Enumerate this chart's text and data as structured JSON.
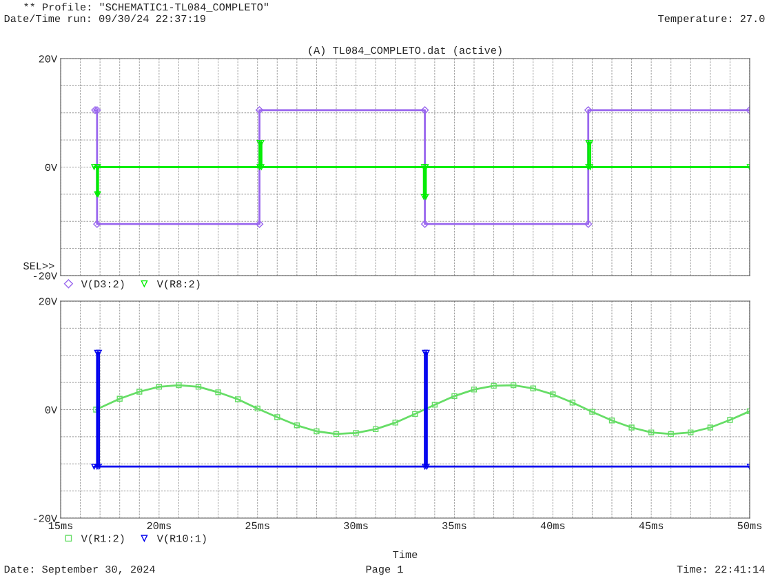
{
  "chart_data": [
    {
      "type": "line",
      "title": "(A) TL084_COMPLETO.dat (active)",
      "annotations": [
        "** Profile: \"SCHEMATIC1-TL084_COMPLETO\"",
        "Date/Time run: 09/30/24 22:37:19",
        "Temperature: 27.0",
        "SEL>>"
      ],
      "xlim": [
        15,
        50.0
      ],
      "xticks": [
        {
          "value": 15,
          "label": null
        },
        {
          "value": 16,
          "label": null
        },
        {
          "value": 17,
          "label": null
        },
        {
          "value": 18,
          "label": null
        },
        {
          "value": 19,
          "label": null
        },
        {
          "value": 20,
          "label": null
        },
        {
          "value": 21,
          "label": null
        },
        {
          "value": 22,
          "label": null
        },
        {
          "value": 23,
          "label": null
        },
        {
          "value": 24,
          "label": null
        },
        {
          "value": 25,
          "label": null
        },
        {
          "value": 26,
          "label": null
        },
        {
          "value": 27,
          "label": null
        },
        {
          "value": 28,
          "label": null
        },
        {
          "value": 29,
          "label": null
        },
        {
          "value": 30,
          "label": null
        },
        {
          "value": 31,
          "label": null
        },
        {
          "value": 32,
          "label": null
        },
        {
          "value": 33,
          "label": null
        },
        {
          "value": 34,
          "label": null
        },
        {
          "value": 35,
          "label": null
        },
        {
          "value": 36,
          "label": null
        },
        {
          "value": 37,
          "label": null
        },
        {
          "value": 38,
          "label": null
        },
        {
          "value": 39,
          "label": null
        },
        {
          "value": 40,
          "label": null
        },
        {
          "value": 41,
          "label": null
        },
        {
          "value": 42,
          "label": null
        },
        {
          "value": 43,
          "label": null
        },
        {
          "value": 44,
          "label": null
        },
        {
          "value": 45,
          "label": null
        },
        {
          "value": 46,
          "label": null
        },
        {
          "value": 47,
          "label": null
        },
        {
          "value": 48,
          "label": null
        },
        {
          "value": 49,
          "label": null
        },
        {
          "value": 50,
          "label": null
        }
      ],
      "ylim": [
        -20,
        20
      ],
      "yticks": [
        {
          "value": -20,
          "label": "-20V"
        },
        {
          "value": -15,
          "label": null
        },
        {
          "value": -10,
          "label": null
        },
        {
          "value": -5,
          "label": null
        },
        {
          "value": 0,
          "label": "0V"
        },
        {
          "value": 5,
          "label": null
        },
        {
          "value": 10,
          "label": null
        },
        {
          "value": 15,
          "label": null
        },
        {
          "value": 20,
          "label": "20V"
        }
      ],
      "tick_labels": "y",
      "grid": true,
      "legend": "bottom left",
      "series": [
        {
          "name": "V(D3:2)",
          "color": "#9966ee",
          "marker": "diamond",
          "x": [
            16.75,
            16.85,
            16.85,
            25.1,
            25.1,
            33.5,
            33.5,
            41.8,
            41.8,
            50.0
          ],
          "values": [
            10.5,
            10.5,
            -10.5,
            -10.5,
            10.5,
            10.5,
            -10.5,
            -10.5,
            10.5,
            10.5
          ]
        },
        {
          "name": "V(R8:2)",
          "color": "#00ee00",
          "marker": "triangle",
          "x": [
            16.7,
            16.85,
            16.85,
            16.9,
            16.9,
            25.1,
            25.1,
            25.2,
            25.2,
            33.45,
            33.45,
            33.55,
            33.55,
            41.8,
            41.8,
            41.9,
            41.9,
            50.0
          ],
          "values": [
            0,
            0,
            -5,
            -5,
            0,
            0,
            4.5,
            4.5,
            0,
            0,
            -5.5,
            -5.5,
            0,
            0,
            4.5,
            4.5,
            0,
            0
          ]
        }
      ]
    },
    {
      "type": "line",
      "xlabel": "Time",
      "annotations": [
        "Date: September 30, 2024",
        "Page 1",
        "Time: 22:41:14"
      ],
      "xlim": [
        15,
        50.0
      ],
      "xticks": [
        {
          "value": 15,
          "label": "15ms"
        },
        {
          "value": 16,
          "label": null
        },
        {
          "value": 17,
          "label": null
        },
        {
          "value": 18,
          "label": null
        },
        {
          "value": 19,
          "label": null
        },
        {
          "value": 20,
          "label": "20ms"
        },
        {
          "value": 21,
          "label": null
        },
        {
          "value": 22,
          "label": null
        },
        {
          "value": 23,
          "label": null
        },
        {
          "value": 24,
          "label": null
        },
        {
          "value": 25,
          "label": "25ms"
        },
        {
          "value": 26,
          "label": null
        },
        {
          "value": 27,
          "label": null
        },
        {
          "value": 28,
          "label": null
        },
        {
          "value": 29,
          "label": null
        },
        {
          "value": 30,
          "label": "30ms"
        },
        {
          "value": 31,
          "label": null
        },
        {
          "value": 32,
          "label": null
        },
        {
          "value": 33,
          "label": null
        },
        {
          "value": 34,
          "label": null
        },
        {
          "value": 35,
          "label": "35ms"
        },
        {
          "value": 36,
          "label": null
        },
        {
          "value": 37,
          "label": null
        },
        {
          "value": 38,
          "label": null
        },
        {
          "value": 39,
          "label": null
        },
        {
          "value": 40,
          "label": "40ms"
        },
        {
          "value": 41,
          "label": null
        },
        {
          "value": 42,
          "label": null
        },
        {
          "value": 43,
          "label": null
        },
        {
          "value": 44,
          "label": null
        },
        {
          "value": 45,
          "label": "45ms"
        },
        {
          "value": 46,
          "label": null
        },
        {
          "value": 47,
          "label": null
        },
        {
          "value": 48,
          "label": null
        },
        {
          "value": 49,
          "label": null
        },
        {
          "value": 50,
          "label": "50ms"
        }
      ],
      "ylim": [
        -20,
        20
      ],
      "yticks": [
        {
          "value": -20,
          "label": "-20V"
        },
        {
          "value": -15,
          "label": null
        },
        {
          "value": -10,
          "label": null
        },
        {
          "value": -5,
          "label": null
        },
        {
          "value": 0,
          "label": "0V"
        },
        {
          "value": 5,
          "label": null
        },
        {
          "value": 10,
          "label": null
        },
        {
          "value": 15,
          "label": null
        },
        {
          "value": 20,
          "label": "20V"
        }
      ],
      "grid": true,
      "legend": "bottom left",
      "series": [
        {
          "name": "V(R1:2)",
          "color": "#66dd66",
          "marker": "square",
          "x": [
            16.8,
            18,
            19,
            20,
            21,
            22,
            23,
            24,
            25,
            26,
            27,
            28,
            29,
            30,
            31,
            32,
            33,
            34,
            35,
            36,
            37,
            38,
            39,
            40,
            41,
            42,
            43,
            44,
            45,
            46,
            47,
            48,
            49,
            50
          ],
          "values": [
            0,
            2.0,
            3.3,
            4.2,
            4.5,
            4.2,
            3.2,
            1.9,
            0.2,
            -1.4,
            -2.9,
            -4.0,
            -4.5,
            -4.3,
            -3.6,
            -2.4,
            -0.8,
            0.9,
            2.5,
            3.7,
            4.4,
            4.5,
            3.9,
            2.8,
            1.3,
            -0.4,
            -2.0,
            -3.3,
            -4.2,
            -4.5,
            -4.2,
            -3.3,
            -1.9,
            -0.3
          ]
        },
        {
          "name": "V(R10:1)",
          "color": "#0000ee",
          "marker": "triangle",
          "x": [
            16.7,
            16.85,
            16.85,
            16.95,
            16.95,
            33.5,
            33.5,
            33.6,
            33.6,
            50.0
          ],
          "values": [
            -10.5,
            -10.5,
            10.5,
            10.5,
            -10.5,
            -10.5,
            10.5,
            10.5,
            -10.5,
            -10.5
          ]
        }
      ]
    }
  ]
}
